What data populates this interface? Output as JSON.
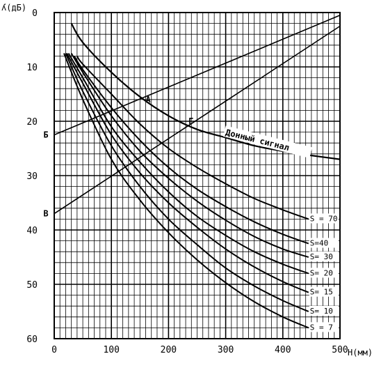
{
  "chart_data": {
    "type": "line",
    "xlabel": "H(мм)",
    "ylabel": "ʎ(дБ)",
    "xlim": [
      0,
      500
    ],
    "ylim": [
      0,
      60
    ],
    "y_inverted": true,
    "grid": true,
    "x_ticks": [
      "0",
      "100",
      "200",
      "300",
      "400",
      "500"
    ],
    "y_ticks": [
      "0",
      "10",
      "20",
      "30",
      "40",
      "50",
      "60"
    ],
    "series": [
      {
        "name": "Донный сигнал",
        "x": [
          30,
          50,
          100,
          150,
          200,
          250,
          300,
          350,
          400,
          450,
          500
        ],
        "y": [
          2,
          5.5,
          11,
          15.5,
          19,
          21.5,
          23,
          24.5,
          25.5,
          26.3,
          27
        ]
      },
      {
        "name": "S = 70",
        "x": [
          40,
          50,
          100,
          150,
          200,
          250,
          300,
          350,
          400,
          445
        ],
        "y": [
          8,
          9.5,
          15,
          20.5,
          25,
          28.5,
          31.5,
          34.2,
          36.3,
          38
        ]
      },
      {
        "name": "S=40",
        "x": [
          35,
          50,
          100,
          150,
          200,
          250,
          300,
          350,
          400,
          445
        ],
        "y": [
          8,
          10.5,
          17.5,
          23.5,
          28.5,
          32.5,
          35.7,
          38.5,
          40.8,
          42.5
        ]
      },
      {
        "name": "S= 30",
        "x": [
          30,
          50,
          100,
          150,
          200,
          250,
          300,
          350,
          400,
          445
        ],
        "y": [
          7.5,
          11,
          19,
          25.5,
          30.5,
          34.7,
          38.2,
          41.2,
          43.5,
          45
        ]
      },
      {
        "name": "S= 20",
        "x": [
          25,
          50,
          100,
          150,
          200,
          250,
          300,
          350,
          400,
          445
        ],
        "y": [
          7.5,
          12,
          21,
          27.5,
          33,
          37.5,
          41,
          44,
          46.3,
          48
        ]
      },
      {
        "name": "S= 15",
        "x": [
          22,
          50,
          100,
          150,
          200,
          250,
          300,
          350,
          400,
          445
        ],
        "y": [
          7.5,
          13,
          22.5,
          29.5,
          35,
          39.5,
          43.5,
          46.8,
          49.5,
          51.5
        ]
      },
      {
        "name": "S= 10",
        "x": [
          20,
          50,
          100,
          150,
          200,
          250,
          300,
          350,
          400,
          445
        ],
        "y": [
          7.5,
          14.5,
          24.5,
          32,
          38,
          42.7,
          47,
          50.3,
          53,
          55
        ]
      },
      {
        "name": "S = 7",
        "x": [
          17,
          50,
          100,
          150,
          200,
          250,
          300,
          350,
          400,
          445
        ],
        "y": [
          7.5,
          16,
          27,
          34.5,
          40.5,
          45.5,
          49.7,
          53.2,
          56,
          58
        ]
      }
    ],
    "straight_lines": [
      {
        "from_label": "Б",
        "x": [
          0,
          500
        ],
        "y": [
          22.5,
          0.5
        ]
      },
      {
        "from_label": "В",
        "x": [
          0,
          500
        ],
        "y": [
          37,
          2.5
        ]
      }
    ],
    "annotations": [
      {
        "text": "Б",
        "x": -8,
        "y": 22.5
      },
      {
        "text": "В",
        "x": -8,
        "y": 37
      },
      {
        "text": "А",
        "x": 160,
        "y": 16
      },
      {
        "text": "Г",
        "x": 235,
        "y": 20
      },
      {
        "text": "Донный  сигнал",
        "x": 300,
        "y": 22
      }
    ]
  }
}
